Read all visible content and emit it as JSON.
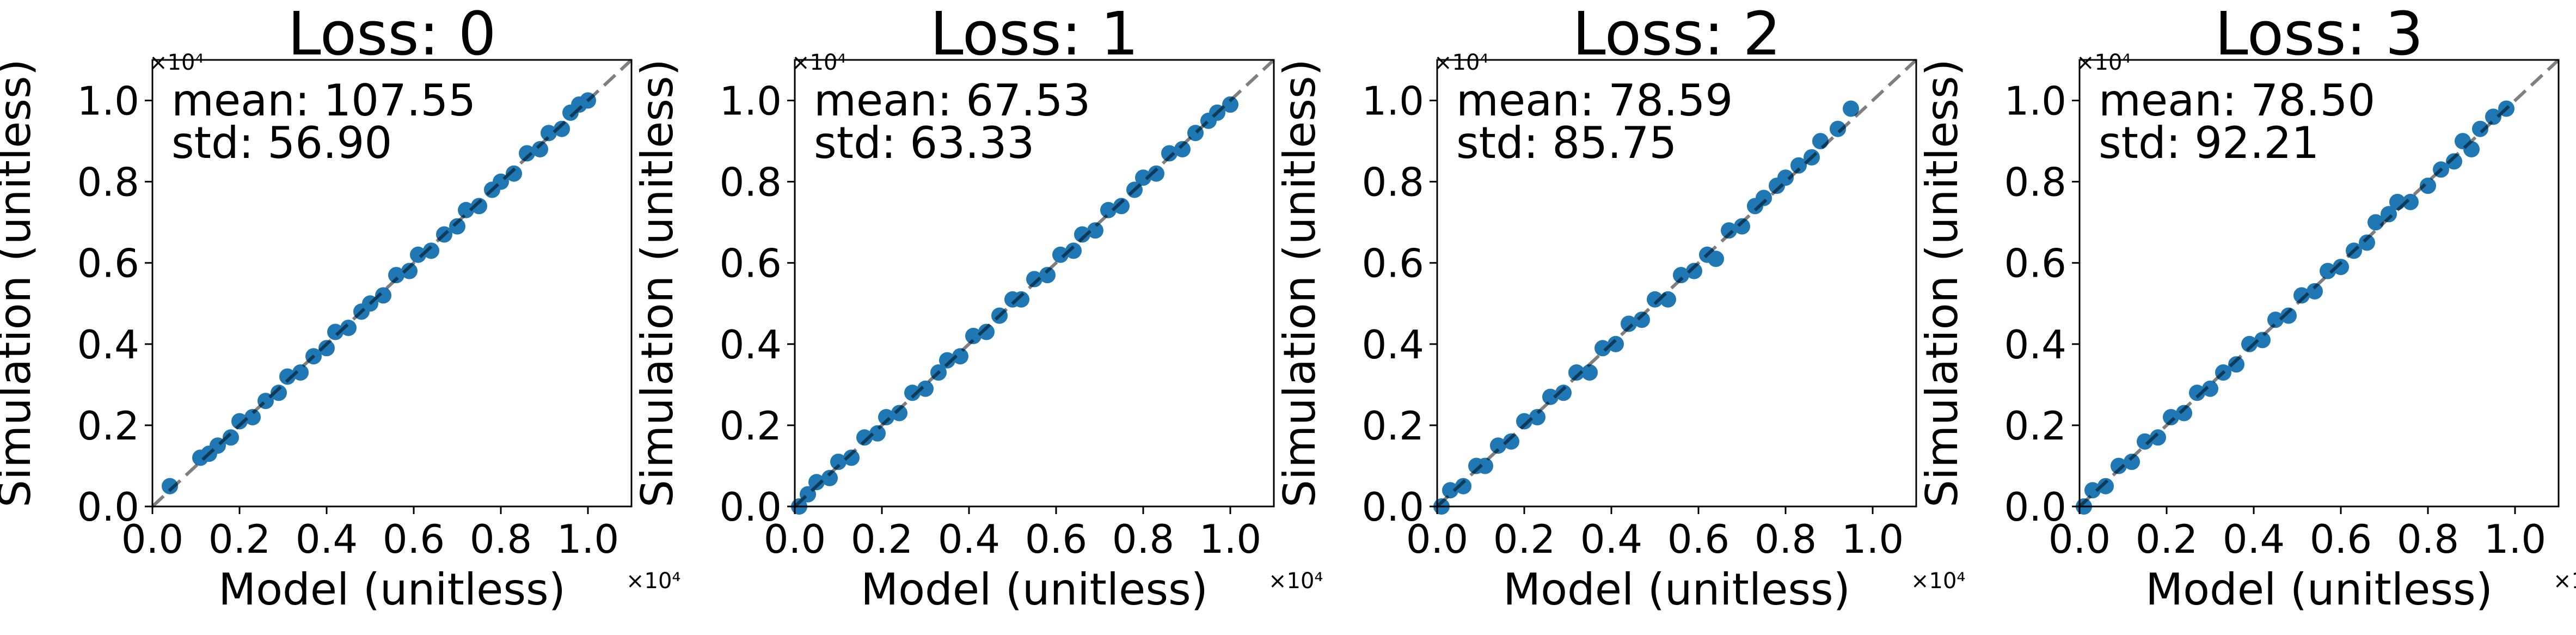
{
  "chart_data": [
    {
      "type": "scatter",
      "title": "Loss: 0",
      "xlabel": "Model (unitless)",
      "ylabel": "Simulation (unitless)",
      "axis_multiplier": "×10⁴",
      "xlim": [
        0,
        1.1
      ],
      "ylim": [
        0,
        1.1
      ],
      "x_ticks": [
        "0.0",
        "0.2",
        "0.4",
        "0.6",
        "0.8",
        "1.0"
      ],
      "y_ticks": [
        "0.0",
        "0.2",
        "0.4",
        "0.6",
        "0.8",
        "1.0"
      ],
      "grid": false,
      "reference_line": "y = x (dashed)",
      "annotation": [
        "mean: 107.55",
        "std: 56.90"
      ],
      "point_color": "#1f77b4",
      "x_range": [
        0.04,
        1.0
      ],
      "x_range_note": "points lie along y = x; an isolated point near 0.04, then a dense run 0.11–1.0",
      "series": [
        {
          "points": [
            [
              0.04,
              0.05
            ],
            [
              0.11,
              0.12
            ],
            [
              0.13,
              0.13
            ],
            [
              0.15,
              0.15
            ],
            [
              0.18,
              0.17
            ],
            [
              0.2,
              0.21
            ],
            [
              0.23,
              0.22
            ],
            [
              0.26,
              0.26
            ],
            [
              0.29,
              0.28
            ],
            [
              0.31,
              0.32
            ],
            [
              0.34,
              0.33
            ],
            [
              0.37,
              0.37
            ],
            [
              0.4,
              0.39
            ],
            [
              0.42,
              0.43
            ],
            [
              0.45,
              0.44
            ],
            [
              0.48,
              0.48
            ],
            [
              0.5,
              0.5
            ],
            [
              0.53,
              0.52
            ],
            [
              0.56,
              0.57
            ],
            [
              0.59,
              0.58
            ],
            [
              0.61,
              0.62
            ],
            [
              0.64,
              0.63
            ],
            [
              0.67,
              0.67
            ],
            [
              0.7,
              0.69
            ],
            [
              0.72,
              0.73
            ],
            [
              0.75,
              0.74
            ],
            [
              0.78,
              0.78
            ],
            [
              0.8,
              0.8
            ],
            [
              0.83,
              0.82
            ],
            [
              0.86,
              0.87
            ],
            [
              0.89,
              0.88
            ],
            [
              0.91,
              0.92
            ],
            [
              0.94,
              0.93
            ],
            [
              0.96,
              0.97
            ],
            [
              0.98,
              0.99
            ],
            [
              1.0,
              1.0
            ]
          ]
        }
      ]
    },
    {
      "type": "scatter",
      "title": "Loss: 1",
      "xlabel": "Model (unitless)",
      "ylabel": "Simulation (unitless)",
      "axis_multiplier": "×10⁴",
      "xlim": [
        0,
        1.1
      ],
      "ylim": [
        0,
        1.1
      ],
      "x_ticks": [
        "0.0",
        "0.2",
        "0.4",
        "0.6",
        "0.8",
        "1.0"
      ],
      "y_ticks": [
        "0.0",
        "0.2",
        "0.4",
        "0.6",
        "0.8",
        "1.0"
      ],
      "grid": false,
      "reference_line": "y = x (dashed)",
      "annotation": [
        "mean: 67.53",
        "std: 63.33"
      ],
      "point_color": "#1f77b4",
      "x_range": [
        0.0,
        1.0
      ],
      "series": [
        {
          "points": [
            [
              0.01,
              0.0
            ],
            [
              0.03,
              0.03
            ],
            [
              0.05,
              0.06
            ],
            [
              0.08,
              0.07
            ],
            [
              0.1,
              0.11
            ],
            [
              0.13,
              0.12
            ],
            [
              0.16,
              0.17
            ],
            [
              0.19,
              0.18
            ],
            [
              0.21,
              0.22
            ],
            [
              0.24,
              0.23
            ],
            [
              0.27,
              0.28
            ],
            [
              0.3,
              0.29
            ],
            [
              0.33,
              0.33
            ],
            [
              0.35,
              0.36
            ],
            [
              0.38,
              0.37
            ],
            [
              0.41,
              0.42
            ],
            [
              0.44,
              0.43
            ],
            [
              0.47,
              0.47
            ],
            [
              0.5,
              0.51
            ],
            [
              0.52,
              0.51
            ],
            [
              0.55,
              0.56
            ],
            [
              0.58,
              0.57
            ],
            [
              0.61,
              0.62
            ],
            [
              0.64,
              0.63
            ],
            [
              0.66,
              0.67
            ],
            [
              0.69,
              0.68
            ],
            [
              0.72,
              0.73
            ],
            [
              0.75,
              0.74
            ],
            [
              0.78,
              0.78
            ],
            [
              0.8,
              0.81
            ],
            [
              0.83,
              0.82
            ],
            [
              0.86,
              0.87
            ],
            [
              0.89,
              0.88
            ],
            [
              0.92,
              0.92
            ],
            [
              0.95,
              0.95
            ],
            [
              0.97,
              0.97
            ],
            [
              1.0,
              0.99
            ]
          ]
        }
      ]
    },
    {
      "type": "scatter",
      "title": "Loss: 2",
      "xlabel": "Model (unitless)",
      "ylabel": "Simulation (unitless)",
      "axis_multiplier": "×10⁴",
      "xlim": [
        0,
        1.1
      ],
      "ylim": [
        0,
        1.1
      ],
      "x_ticks": [
        "0.0",
        "0.2",
        "0.4",
        "0.6",
        "0.8",
        "1.0"
      ],
      "y_ticks": [
        "0.0",
        "0.2",
        "0.4",
        "0.6",
        "0.8",
        "1.0"
      ],
      "grid": false,
      "reference_line": "y = x (dashed)",
      "annotation": [
        "mean: 78.59",
        "std: 85.75"
      ],
      "point_color": "#1f77b4",
      "x_range": [
        0.0,
        0.95
      ],
      "series": [
        {
          "points": [
            [
              0.01,
              0.0
            ],
            [
              0.03,
              0.04
            ],
            [
              0.06,
              0.05
            ],
            [
              0.09,
              0.1
            ],
            [
              0.11,
              0.1
            ],
            [
              0.14,
              0.15
            ],
            [
              0.17,
              0.16
            ],
            [
              0.2,
              0.21
            ],
            [
              0.23,
              0.22
            ],
            [
              0.26,
              0.27
            ],
            [
              0.29,
              0.28
            ],
            [
              0.32,
              0.33
            ],
            [
              0.35,
              0.33
            ],
            [
              0.38,
              0.39
            ],
            [
              0.41,
              0.4
            ],
            [
              0.44,
              0.45
            ],
            [
              0.47,
              0.46
            ],
            [
              0.5,
              0.51
            ],
            [
              0.53,
              0.51
            ],
            [
              0.56,
              0.57
            ],
            [
              0.59,
              0.58
            ],
            [
              0.62,
              0.62
            ],
            [
              0.64,
              0.61
            ],
            [
              0.67,
              0.68
            ],
            [
              0.7,
              0.69
            ],
            [
              0.73,
              0.74
            ],
            [
              0.75,
              0.76
            ],
            [
              0.78,
              0.79
            ],
            [
              0.8,
              0.81
            ],
            [
              0.83,
              0.84
            ],
            [
              0.86,
              0.86
            ],
            [
              0.88,
              0.9
            ],
            [
              0.92,
              0.93
            ],
            [
              0.95,
              0.98
            ]
          ]
        }
      ]
    },
    {
      "type": "scatter",
      "title": "Loss: 3",
      "xlabel": "Model (unitless)",
      "ylabel": "Simulation (unitless)",
      "axis_multiplier": "×10⁴",
      "xlim": [
        0,
        1.1
      ],
      "ylim": [
        0,
        1.1
      ],
      "x_ticks": [
        "0.0",
        "0.2",
        "0.4",
        "0.6",
        "0.8",
        "1.0"
      ],
      "y_ticks": [
        "0.0",
        "0.2",
        "0.4",
        "0.6",
        "0.8",
        "1.0"
      ],
      "grid": false,
      "reference_line": "y = x (dashed)",
      "annotation": [
        "mean: 78.50",
        "std: 92.21"
      ],
      "point_color": "#1f77b4",
      "x_range": [
        0.0,
        0.98
      ],
      "series": [
        {
          "points": [
            [
              0.01,
              0.0
            ],
            [
              0.03,
              0.04
            ],
            [
              0.06,
              0.05
            ],
            [
              0.09,
              0.1
            ],
            [
              0.12,
              0.11
            ],
            [
              0.15,
              0.16
            ],
            [
              0.18,
              0.17
            ],
            [
              0.21,
              0.22
            ],
            [
              0.24,
              0.23
            ],
            [
              0.27,
              0.28
            ],
            [
              0.3,
              0.29
            ],
            [
              0.33,
              0.33
            ],
            [
              0.36,
              0.35
            ],
            [
              0.39,
              0.4
            ],
            [
              0.42,
              0.41
            ],
            [
              0.45,
              0.46
            ],
            [
              0.48,
              0.47
            ],
            [
              0.51,
              0.52
            ],
            [
              0.54,
              0.53
            ],
            [
              0.57,
              0.58
            ],
            [
              0.6,
              0.59
            ],
            [
              0.63,
              0.63
            ],
            [
              0.66,
              0.65
            ],
            [
              0.68,
              0.7
            ],
            [
              0.71,
              0.72
            ],
            [
              0.73,
              0.75
            ],
            [
              0.76,
              0.75
            ],
            [
              0.8,
              0.79
            ],
            [
              0.83,
              0.83
            ],
            [
              0.86,
              0.85
            ],
            [
              0.88,
              0.9
            ],
            [
              0.9,
              0.88
            ],
            [
              0.92,
              0.93
            ],
            [
              0.95,
              0.96
            ],
            [
              0.98,
              0.98
            ]
          ]
        }
      ]
    }
  ]
}
